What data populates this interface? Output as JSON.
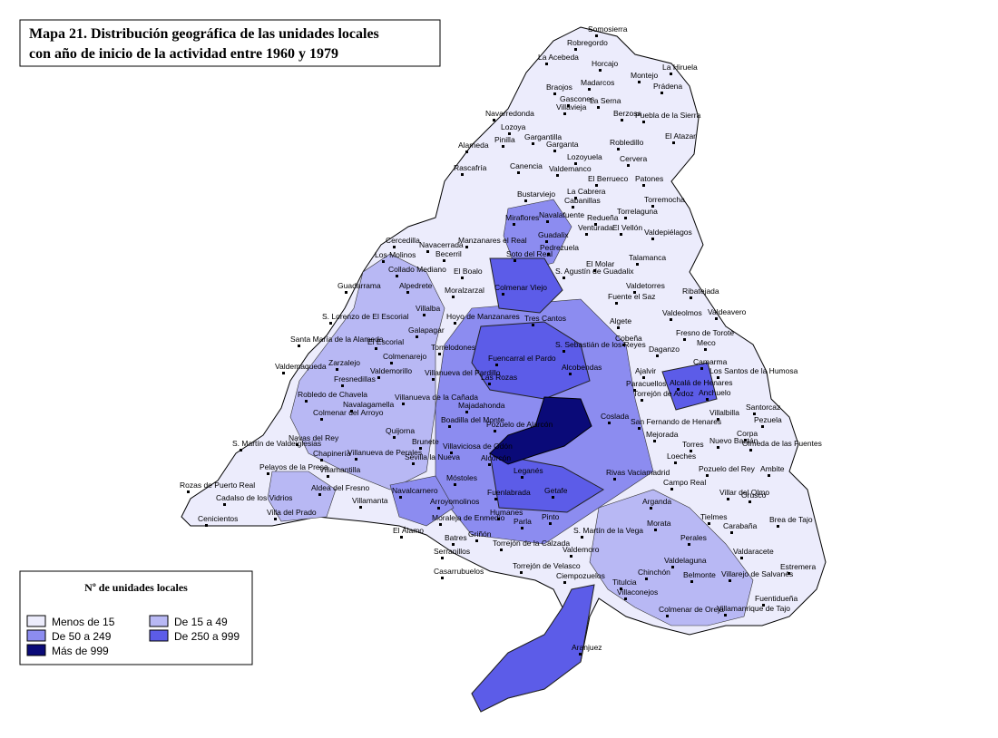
{
  "title": [
    "Mapa 21. Distribución geográfica de las unidades locales",
    "con año de inicio de la actividad entre 1960 y 1979"
  ],
  "legend": {
    "title": "Nº de unidades locales",
    "items": [
      {
        "label": "Menos de 15",
        "color": "#ececfc"
      },
      {
        "label": "De 15 a 49",
        "color": "#b8b8f4"
      },
      {
        "label": "De 50 a 249",
        "color": "#8c8cf0"
      },
      {
        "label": "De 250 a 999",
        "color": "#5c5ce8"
      },
      {
        "label": "Más de 999",
        "color": "#0a0a78"
      }
    ]
  },
  "places": [
    "Somosierra",
    "Robregordo",
    "La Acebeda",
    "Horcajo",
    "La Hiruela",
    "Montejo",
    "Braojos",
    "Madarcos",
    "Prádena",
    "Gascones",
    "La Serna",
    "Villavieja",
    "Berzosa",
    "Puebla de la Sierra",
    "Navarredonda",
    "Lozoya",
    "Gargantilla",
    "Pinilla",
    "Garganta",
    "Robledillo",
    "El Atazar",
    "Alameda",
    "Lozoyuela",
    "Cervera",
    "Rascafría",
    "Canencia",
    "Valdemanco",
    "El Berrueco",
    "Patones",
    "Bustarviejo",
    "La Cabrera",
    "Cabanillas",
    "Torremocha",
    "Navalafuente",
    "Miraflores",
    "Redueña",
    "Torrelaguna",
    "Guadalix",
    "Venturada",
    "El Vellón",
    "Valdepiélagos",
    "Manzanares el Real",
    "Soto del Real",
    "Pedrezuela",
    "Cercedilla",
    "Navacerrada",
    "Becerril",
    "Los Molinos",
    "Collado Mediano",
    "El Boalo",
    "Alpedrete",
    "El Molar",
    "Talamanca",
    "S. Agustín de Guadalix",
    "Guadarrama",
    "Moralzarzal",
    "Colmenar Viejo",
    "Valdetorres",
    "Fuente el Saz",
    "Ribatejada",
    "Villalba",
    "Algete",
    "Valdeolmos",
    "Valdeavero",
    "Hoyo de Manzanares",
    "Tres Cantos",
    "S. Lorenzo de El Escorial",
    "Galapagar",
    "Fresno de Torote",
    "Santa María de la Alameda",
    "El Escorial",
    "Torrelodones",
    "Fuencarral el Pardo",
    "S. Sebastián de los Reyes",
    "Cobeña",
    "Daganzo",
    "Meco",
    "Colmenarejo",
    "Camarma",
    "Zarzalejo",
    "Valdemorillo",
    "Villanueva del Pardillo",
    "Las Rozas",
    "Alcobendas",
    "Paracuellos",
    "Ajalvir",
    "Los Santos de la Humosa",
    "Valdemaqueda",
    "Fresnedillas",
    "Alcalá de Henares",
    "Robledo de Chavela",
    "Majadahonda",
    "Navalagamella",
    "Villanueva de la Cañada",
    "Torrejón de Ardoz",
    "Anchuelo",
    "Santorcaz",
    "Colmenar del Arroyo",
    "Boadilla del Monte",
    "Pozuelo de Alarcón",
    "Coslada",
    "San Fernando de Henares",
    "Villalbilla",
    "Pezuela",
    "Quijorna",
    "Brunete",
    "Mejorada",
    "Corpa",
    "S. Martín de Valdeiglesias",
    "Navas del Rey",
    "Nuevo Baztán",
    "Sevilla la Nueva",
    "Villaviciosa de Odón",
    "Alcorcón",
    "Torres",
    "Olmeda de las Fuentes",
    "Chapinería",
    "Villanueva de Perales",
    "Loeches",
    "Pelayos de la Presa",
    "Leganés",
    "Móstoles",
    "Getafe",
    "Villamantilla",
    "Rivas Vaciamadrid",
    "Pozuelo del Rey",
    "Ambite",
    "Campo Real",
    "Rozas de Puerto Real",
    "Aldea del Fresno",
    "Villar del Olmo",
    "Cadalso de los Vidrios",
    "Fuenlabrada",
    "Navalcarnero",
    "Arroyomolinos",
    "Orusco",
    "Arganda",
    "Villamanta",
    "Humanes",
    "Parla",
    "Pinto",
    "Moraleja de Enmedio",
    "Tielmes",
    "Carabaña",
    "Brea de Tajo",
    "Cenicientos",
    "Villa del Prado",
    "Morata",
    "S. Martín de la Vega",
    "Perales",
    "El Álamo",
    "Batres",
    "Griñón",
    "Torrejón de la Calzada",
    "Serranillos",
    "Casarrubuelos",
    "Valdaracete",
    "Valdemoro",
    "Valdelaguna",
    "Torrejón de Velasco",
    "Estremera",
    "Belmonte",
    "Villarejo de Salvanés",
    "Ciempozuelos",
    "Chinchón",
    "Titulcia",
    "Villaconejos",
    "Fuentidueña",
    "Colmenar de Oreja",
    "Villamanrique de Tajo",
    "Aranjuez"
  ]
}
